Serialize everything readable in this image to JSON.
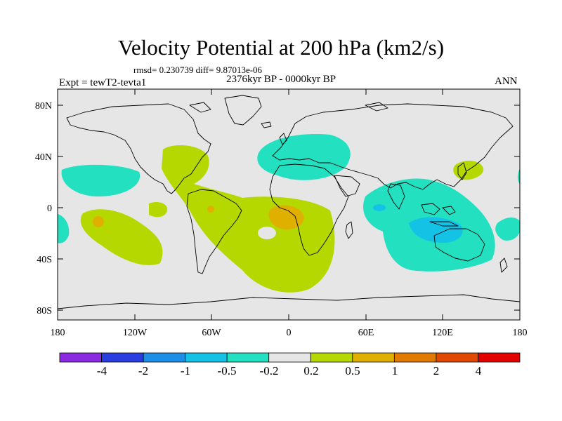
{
  "title": "Velocity Potential at 200 hPa (km2/s)",
  "stats_line": "rmsd= 0.230739 diff= 9.87013e-06",
  "period": "2376kyr BP - 0000kyr BP",
  "experiment": "Expt = tewT2-tevta1",
  "season": "ANN",
  "map": {
    "projection": "cylindrical equidistant",
    "lon_range": [
      -180,
      180
    ],
    "lat_range": [
      -90,
      90
    ],
    "lat_labels": [
      "80N",
      "40N",
      "0",
      "40S",
      "80S"
    ],
    "lon_labels": [
      "180",
      "120W",
      "60W",
      "0",
      "60E",
      "120E",
      "180"
    ]
  },
  "colorbar": {
    "colors": [
      "#8a2be2",
      "#2a3ee0",
      "#1e8fe6",
      "#14c2e6",
      "#22e0c0",
      "#e6e6e6",
      "#b4d800",
      "#e0b000",
      "#e07a00",
      "#e04a00",
      "#e00000"
    ],
    "labels": [
      "-4",
      "-2",
      "-1",
      "-0.5",
      "-0.2",
      "0.2",
      "0.5",
      "1",
      "2",
      "4"
    ]
  },
  "colors": {
    "background": "#e6e6e6",
    "coast": "#000000"
  }
}
